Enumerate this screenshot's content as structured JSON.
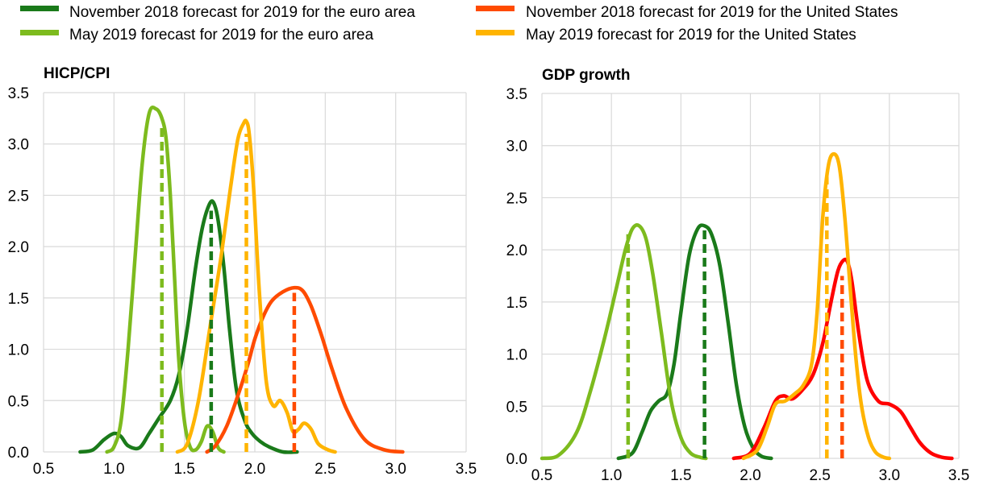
{
  "legend": [
    {
      "label": "November 2018 forecast for 2019 for the euro area",
      "color": "#1a7a1a"
    },
    {
      "label": "May 2019 forecast for 2019 for the euro area",
      "color": "#7dbb1e"
    },
    {
      "label": "November 2018 forecast for 2019 for the United States",
      "color": "#ff4b00"
    },
    {
      "label": "May 2019 forecast for 2019 for the United States",
      "color": "#ffb400"
    }
  ],
  "chart_data": [
    {
      "type": "line",
      "title": "HICP/CPI",
      "xlim": [
        0.5,
        3.5
      ],
      "ylim": [
        0,
        3.5
      ],
      "xticks": [
        "0.5",
        "1.0",
        "1.5",
        "2.0",
        "2.5",
        "3.0",
        "3.5"
      ],
      "yticks": [
        "0.0",
        "0.5",
        "1.0",
        "1.5",
        "2.0",
        "2.5",
        "3.0",
        "3.5"
      ],
      "series": [
        {
          "name": "November 2018 forecast for 2019 for the euro area",
          "color": "#1a7a1a",
          "x": [
            0.76,
            0.85,
            0.93,
            1.0,
            1.05,
            1.1,
            1.18,
            1.25,
            1.32,
            1.4,
            1.46,
            1.52,
            1.58,
            1.63,
            1.68,
            1.71,
            1.74,
            1.78,
            1.82,
            1.87,
            1.93,
            1.98,
            2.04,
            2.1,
            2.2,
            2.3
          ],
          "y": [
            0.0,
            0.02,
            0.12,
            0.18,
            0.15,
            0.06,
            0.04,
            0.18,
            0.33,
            0.5,
            0.75,
            1.2,
            1.8,
            2.2,
            2.42,
            2.42,
            2.25,
            1.8,
            1.2,
            0.6,
            0.3,
            0.18,
            0.1,
            0.05,
            0.0,
            0.0
          ]
        },
        {
          "name": "May 2019 forecast for 2019 for the euro area",
          "color": "#7dbb1e",
          "x": [
            0.95,
            1.0,
            1.05,
            1.1,
            1.15,
            1.2,
            1.25,
            1.3,
            1.34,
            1.37,
            1.4,
            1.43,
            1.46,
            1.5,
            1.54,
            1.58,
            1.62,
            1.66,
            1.7,
            1.74,
            1.78
          ],
          "y": [
            0.0,
            0.05,
            0.3,
            1.0,
            1.9,
            2.8,
            3.3,
            3.34,
            3.25,
            3.05,
            2.5,
            1.7,
            0.9,
            0.3,
            0.05,
            0.02,
            0.1,
            0.25,
            0.2,
            0.04,
            0.0
          ]
        },
        {
          "name": "November 2018 forecast for 2019 for the United States",
          "color": "#ff4b00",
          "x": [
            1.66,
            1.72,
            1.8,
            1.88,
            1.95,
            2.0,
            2.06,
            2.12,
            2.2,
            2.28,
            2.34,
            2.4,
            2.47,
            2.55,
            2.65,
            2.78,
            2.92,
            3.05
          ],
          "y": [
            0.0,
            0.06,
            0.25,
            0.55,
            0.85,
            1.1,
            1.32,
            1.47,
            1.56,
            1.6,
            1.57,
            1.42,
            1.15,
            0.8,
            0.42,
            0.12,
            0.02,
            0.0
          ]
        },
        {
          "name": "May 2019 forecast for 2019 for the United States",
          "color": "#ffb400",
          "x": [
            1.45,
            1.52,
            1.6,
            1.68,
            1.76,
            1.83,
            1.88,
            1.92,
            1.94,
            1.96,
            1.99,
            2.03,
            2.08,
            2.13,
            2.18,
            2.23,
            2.27,
            2.31,
            2.35,
            2.4,
            2.45,
            2.52,
            2.57
          ],
          "y": [
            0.0,
            0.08,
            0.5,
            1.2,
            1.9,
            2.6,
            3.05,
            3.2,
            3.22,
            3.1,
            2.6,
            1.6,
            0.7,
            0.45,
            0.5,
            0.38,
            0.2,
            0.22,
            0.28,
            0.22,
            0.08,
            0.02,
            0.0
          ]
        }
      ],
      "vlines": [
        {
          "x": 1.34,
          "y": 3.2,
          "color": "#7dbb1e"
        },
        {
          "x": 1.69,
          "y": 2.35,
          "color": "#1a7a1a"
        },
        {
          "x": 1.94,
          "y": 3.1,
          "color": "#ffb400"
        },
        {
          "x": 2.28,
          "y": 1.55,
          "color": "#ff4b00"
        }
      ]
    },
    {
      "type": "line",
      "title": "GDP growth",
      "xlim": [
        0.5,
        3.5
      ],
      "ylim": [
        0,
        3.5
      ],
      "xticks": [
        "0.5",
        "1.0",
        "1.5",
        "2.0",
        "2.5",
        "3.0",
        "3.5"
      ],
      "yticks": [
        "0.0",
        "0.5",
        "1.0",
        "1.5",
        "2.0",
        "2.5",
        "3.0",
        "3.5"
      ],
      "series": [
        {
          "name": "November 2018 forecast for 2019 for the euro area",
          "color": "#1a7a1a",
          "x": [
            1.05,
            1.15,
            1.22,
            1.28,
            1.34,
            1.4,
            1.45,
            1.5,
            1.56,
            1.62,
            1.67,
            1.72,
            1.78,
            1.84,
            1.9,
            1.96,
            2.02,
            2.08,
            2.15
          ],
          "y": [
            0.0,
            0.05,
            0.25,
            0.45,
            0.55,
            0.62,
            0.9,
            1.4,
            1.95,
            2.2,
            2.23,
            2.15,
            1.85,
            1.3,
            0.7,
            0.3,
            0.1,
            0.02,
            0.0
          ]
        },
        {
          "name": "May 2019 forecast for 2019 for the euro area",
          "color": "#7dbb1e",
          "x": [
            0.5,
            0.62,
            0.75,
            0.85,
            0.95,
            1.03,
            1.1,
            1.15,
            1.2,
            1.25,
            1.3,
            1.36,
            1.43,
            1.5,
            1.57,
            1.64,
            1.68
          ],
          "y": [
            0.0,
            0.03,
            0.25,
            0.65,
            1.15,
            1.6,
            2.0,
            2.2,
            2.23,
            2.1,
            1.75,
            1.2,
            0.55,
            0.2,
            0.05,
            0.01,
            0.0
          ]
        },
        {
          "name": "November 2018 forecast for 2019 for the United States",
          "color": "#ff0000",
          "x": [
            1.88,
            2.0,
            2.1,
            2.18,
            2.24,
            2.3,
            2.37,
            2.45,
            2.52,
            2.58,
            2.63,
            2.67,
            2.7,
            2.73,
            2.78,
            2.84,
            2.92,
            3.0,
            3.08,
            3.15,
            3.22,
            3.3,
            3.38,
            3.45
          ],
          "y": [
            0.0,
            0.05,
            0.3,
            0.55,
            0.6,
            0.57,
            0.65,
            0.8,
            1.1,
            1.5,
            1.8,
            1.9,
            1.88,
            1.7,
            1.2,
            0.75,
            0.55,
            0.52,
            0.45,
            0.3,
            0.15,
            0.05,
            0.01,
            0.0
          ]
        },
        {
          "name": "May 2019 forecast for 2019 for the United States",
          "color": "#ffb400",
          "x": [
            1.95,
            2.05,
            2.12,
            2.18,
            2.25,
            2.32,
            2.38,
            2.44,
            2.48,
            2.52,
            2.56,
            2.6,
            2.64,
            2.68,
            2.72,
            2.76,
            2.8,
            2.85,
            2.9,
            2.96,
            3.0
          ],
          "y": [
            0.0,
            0.08,
            0.3,
            0.52,
            0.55,
            0.62,
            0.7,
            0.9,
            1.4,
            2.3,
            2.8,
            2.92,
            2.8,
            2.3,
            1.6,
            0.95,
            0.5,
            0.2,
            0.06,
            0.01,
            0.0
          ]
        }
      ],
      "vlines": [
        {
          "x": 1.12,
          "y": 2.15,
          "color": "#7dbb1e"
        },
        {
          "x": 1.67,
          "y": 2.2,
          "color": "#1a7a1a"
        },
        {
          "x": 2.55,
          "y": 2.7,
          "color": "#ffb400"
        },
        {
          "x": 2.66,
          "y": 1.75,
          "color": "#ff4b00"
        }
      ]
    }
  ]
}
